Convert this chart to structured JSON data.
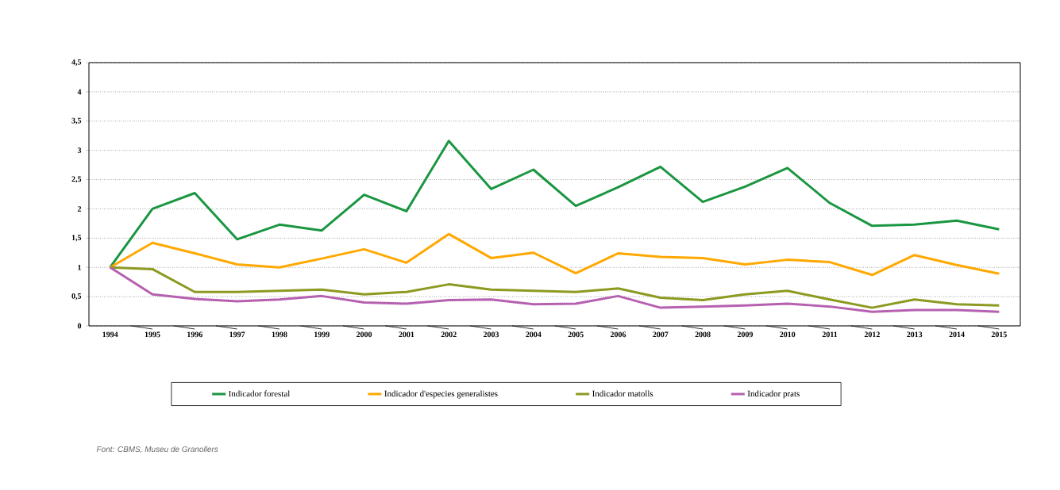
{
  "chart_data": {
    "type": "line",
    "categories": [
      "1994",
      "1995",
      "1996",
      "1997",
      "1998",
      "1999",
      "2000",
      "2001",
      "2002",
      "2003",
      "2004",
      "2005",
      "2006",
      "2007",
      "2008",
      "2009",
      "2010",
      "2011",
      "2012",
      "2013",
      "2014",
      "2015"
    ],
    "series": [
      {
        "name": "Indicador forestal",
        "color": "#1a9641",
        "values": [
          1,
          2.0,
          2.27,
          1.48,
          1.73,
          1.63,
          2.24,
          1.96,
          3.16,
          2.34,
          2.67,
          2.05,
          2.37,
          2.72,
          2.12,
          2.38,
          2.7,
          2.1,
          1.71,
          1.73,
          1.8,
          1.65
        ]
      },
      {
        "name": "Indicador d'especies generalistes",
        "color": "#ffa800",
        "values": [
          1,
          1.42,
          1.24,
          1.05,
          1.0,
          1.15,
          1.31,
          1.08,
          1.57,
          1.16,
          1.25,
          0.9,
          1.24,
          1.18,
          1.16,
          1.05,
          1.13,
          1.09,
          0.87,
          1.21,
          1.04,
          0.89
        ]
      },
      {
        "name": "Indicador matolls",
        "color": "#8c9a20",
        "values": [
          1,
          0.97,
          0.58,
          0.58,
          0.6,
          0.62,
          0.54,
          0.58,
          0.71,
          0.62,
          0.6,
          0.58,
          0.64,
          0.48,
          0.44,
          0.54,
          0.6,
          0.45,
          0.31,
          0.45,
          0.37,
          0.35
        ]
      },
      {
        "name": "Indicador prats",
        "color": "#b660b0",
        "values": [
          1,
          0.54,
          0.46,
          0.42,
          0.45,
          0.51,
          0.4,
          0.38,
          0.44,
          0.45,
          0.37,
          0.38,
          0.51,
          0.31,
          0.33,
          0.35,
          0.38,
          0.33,
          0.24,
          0.27,
          0.27,
          0.24
        ]
      }
    ],
    "ylim": [
      0,
      4.5
    ],
    "yticks": [
      0,
      {
        "value": 0.5,
        "label": "0,5"
      },
      1,
      {
        "value": 1.5,
        "label": "1,5"
      },
      2,
      {
        "value": 2.5,
        "label": "2,5"
      },
      3,
      {
        "value": 3.5,
        "label": "3,5"
      },
      4,
      {
        "value": 4.5,
        "label": "4,5"
      }
    ],
    "grid": "y",
    "legend": "bottom",
    "marker": "none",
    "line_style": "solid",
    "annotations": [
      "Font: CBMS, Museu de Granollers"
    ]
  }
}
